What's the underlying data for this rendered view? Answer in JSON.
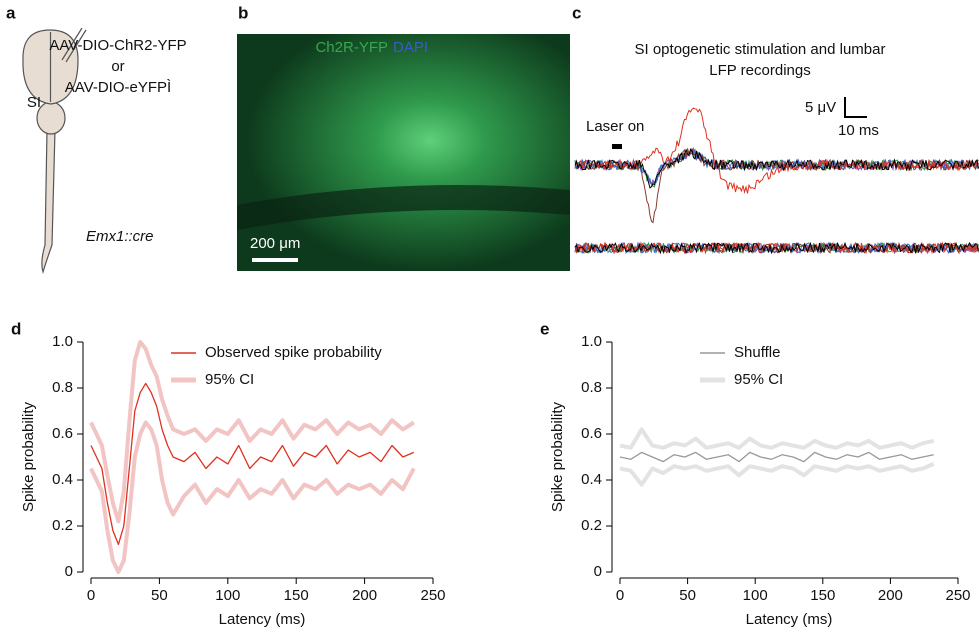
{
  "panels": {
    "a": {
      "label": "a",
      "injection": [
        "AAV-DIO-ChR2-YFP",
        "or",
        "AAV-DIO-eYFPÌ"
      ],
      "region": "SI",
      "genotype": "Emx1::cre"
    },
    "b": {
      "label": "b",
      "stain_green": "Ch2R-YFP",
      "stain_blue": "DAPI",
      "scale": "200 μm"
    },
    "c": {
      "label": "c",
      "title_lines": [
        "SI optogenetic stimulation and lumbar",
        "LFP recordings"
      ],
      "laser": "Laser on",
      "scale_y": "5 μV",
      "scale_x": "10 ms"
    }
  },
  "chart_data": [
    {
      "type": "line",
      "label": "d",
      "xlabel": "Latency (ms)",
      "ylabel": "Spike probability",
      "xlim": [
        0,
        250
      ],
      "ylim": [
        0,
        1
      ],
      "xticks": [
        0,
        50,
        100,
        150,
        200,
        250
      ],
      "yticks": [
        0,
        0.2,
        0.4,
        0.6,
        0.8,
        {
          "value": 1,
          "label": "1.0"
        }
      ],
      "x": [
        0,
        4,
        8,
        12,
        16,
        20,
        24,
        28,
        32,
        36,
        40,
        44,
        48,
        52,
        56,
        60,
        68,
        76,
        84,
        92,
        100,
        108,
        116,
        124,
        132,
        140,
        148,
        156,
        164,
        172,
        180,
        188,
        196,
        204,
        212,
        220,
        228,
        236
      ],
      "series": [
        {
          "name": "Observed spike probability",
          "color": "#e0301e",
          "values": [
            0.55,
            0.5,
            0.45,
            0.3,
            0.18,
            0.12,
            0.2,
            0.45,
            0.7,
            0.78,
            0.82,
            0.78,
            0.72,
            0.62,
            0.55,
            0.5,
            0.48,
            0.52,
            0.45,
            0.5,
            0.47,
            0.55,
            0.45,
            0.5,
            0.48,
            0.55,
            0.46,
            0.52,
            0.5,
            0.55,
            0.47,
            0.53,
            0.5,
            0.52,
            0.48,
            0.55,
            0.5,
            0.52
          ]
        },
        {
          "name": "95% CI",
          "color": "#f2c4c4",
          "upper": [
            0.65,
            0.6,
            0.55,
            0.42,
            0.3,
            0.22,
            0.35,
            0.65,
            0.92,
            1.0,
            0.97,
            0.9,
            0.85,
            0.75,
            0.68,
            0.62,
            0.6,
            0.62,
            0.57,
            0.62,
            0.6,
            0.66,
            0.57,
            0.62,
            0.6,
            0.66,
            0.58,
            0.64,
            0.62,
            0.66,
            0.6,
            0.65,
            0.62,
            0.64,
            0.6,
            0.66,
            0.62,
            0.65
          ],
          "lower": [
            0.45,
            0.4,
            0.35,
            0.18,
            0.05,
            0,
            0.05,
            0.25,
            0.5,
            0.6,
            0.65,
            0.62,
            0.55,
            0.4,
            0.3,
            0.25,
            0.33,
            0.38,
            0.3,
            0.36,
            0.33,
            0.4,
            0.32,
            0.36,
            0.34,
            0.4,
            0.32,
            0.38,
            0.36,
            0.4,
            0.34,
            0.38,
            0.36,
            0.38,
            0.34,
            0.4,
            0.36,
            0.45
          ]
        }
      ]
    },
    {
      "type": "line",
      "label": "e",
      "xlabel": "Latency (ms)",
      "ylabel": "Spike probability",
      "xlim": [
        0,
        250
      ],
      "ylim": [
        0,
        1
      ],
      "xticks": [
        0,
        50,
        100,
        150,
        200,
        250
      ],
      "yticks": [
        0,
        0.2,
        0.4,
        0.6,
        0.8,
        {
          "value": 1,
          "label": "1.0"
        }
      ],
      "x": [
        0,
        8,
        16,
        24,
        32,
        40,
        48,
        56,
        64,
        72,
        80,
        88,
        96,
        104,
        112,
        120,
        128,
        136,
        144,
        152,
        160,
        168,
        176,
        184,
        192,
        200,
        208,
        216,
        224,
        232
      ],
      "series": [
        {
          "name": "Shuffle",
          "color": "#999999",
          "values": [
            0.5,
            0.49,
            0.52,
            0.5,
            0.48,
            0.51,
            0.5,
            0.52,
            0.49,
            0.5,
            0.51,
            0.48,
            0.52,
            0.5,
            0.49,
            0.51,
            0.5,
            0.48,
            0.52,
            0.5,
            0.49,
            0.51,
            0.5,
            0.52,
            0.49,
            0.5,
            0.51,
            0.49,
            0.5,
            0.51
          ]
        },
        {
          "name": "95% CI",
          "color": "#e3e3e3",
          "upper": [
            0.55,
            0.54,
            0.62,
            0.55,
            0.54,
            0.56,
            0.55,
            0.58,
            0.54,
            0.55,
            0.56,
            0.54,
            0.58,
            0.55,
            0.54,
            0.56,
            0.55,
            0.54,
            0.57,
            0.55,
            0.54,
            0.56,
            0.55,
            0.57,
            0.54,
            0.55,
            0.56,
            0.54,
            0.56,
            0.57
          ],
          "lower": [
            0.45,
            0.44,
            0.38,
            0.45,
            0.43,
            0.46,
            0.45,
            0.46,
            0.44,
            0.45,
            0.46,
            0.42,
            0.46,
            0.45,
            0.44,
            0.46,
            0.45,
            0.42,
            0.46,
            0.45,
            0.44,
            0.46,
            0.45,
            0.46,
            0.44,
            0.45,
            0.46,
            0.44,
            0.45,
            0.47
          ]
        }
      ]
    }
  ]
}
